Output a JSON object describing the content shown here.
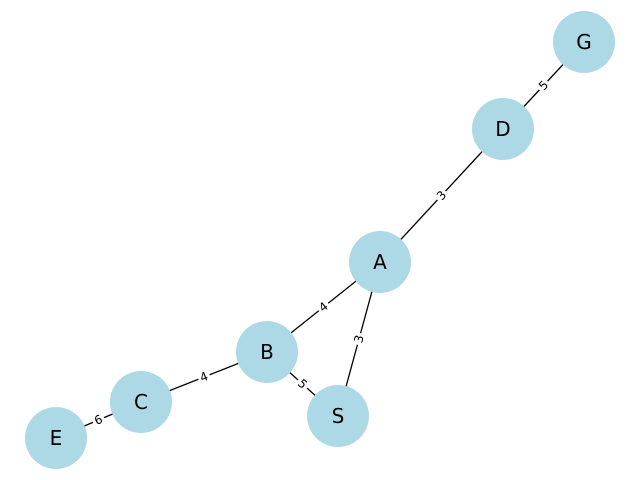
{
  "graph": {
    "node_color": "#add8e6",
    "edge_color": "#000000",
    "label_color": "#000000",
    "nodes": [
      {
        "id": "S",
        "label": "S"
      },
      {
        "id": "A",
        "label": "A"
      },
      {
        "id": "B",
        "label": "B"
      },
      {
        "id": "C",
        "label": "C"
      },
      {
        "id": "D",
        "label": "D"
      },
      {
        "id": "E",
        "label": "E"
      },
      {
        "id": "G",
        "label": "G"
      }
    ],
    "edges": [
      {
        "source": "S",
        "target": "A",
        "weight": "3"
      },
      {
        "source": "S",
        "target": "B",
        "weight": "5"
      },
      {
        "source": "A",
        "target": "B",
        "weight": "4"
      },
      {
        "source": "A",
        "target": "D",
        "weight": "3"
      },
      {
        "source": "B",
        "target": "C",
        "weight": "4"
      },
      {
        "source": "C",
        "target": "E",
        "weight": "6"
      },
      {
        "source": "D",
        "target": "G",
        "weight": "5"
      }
    ]
  }
}
